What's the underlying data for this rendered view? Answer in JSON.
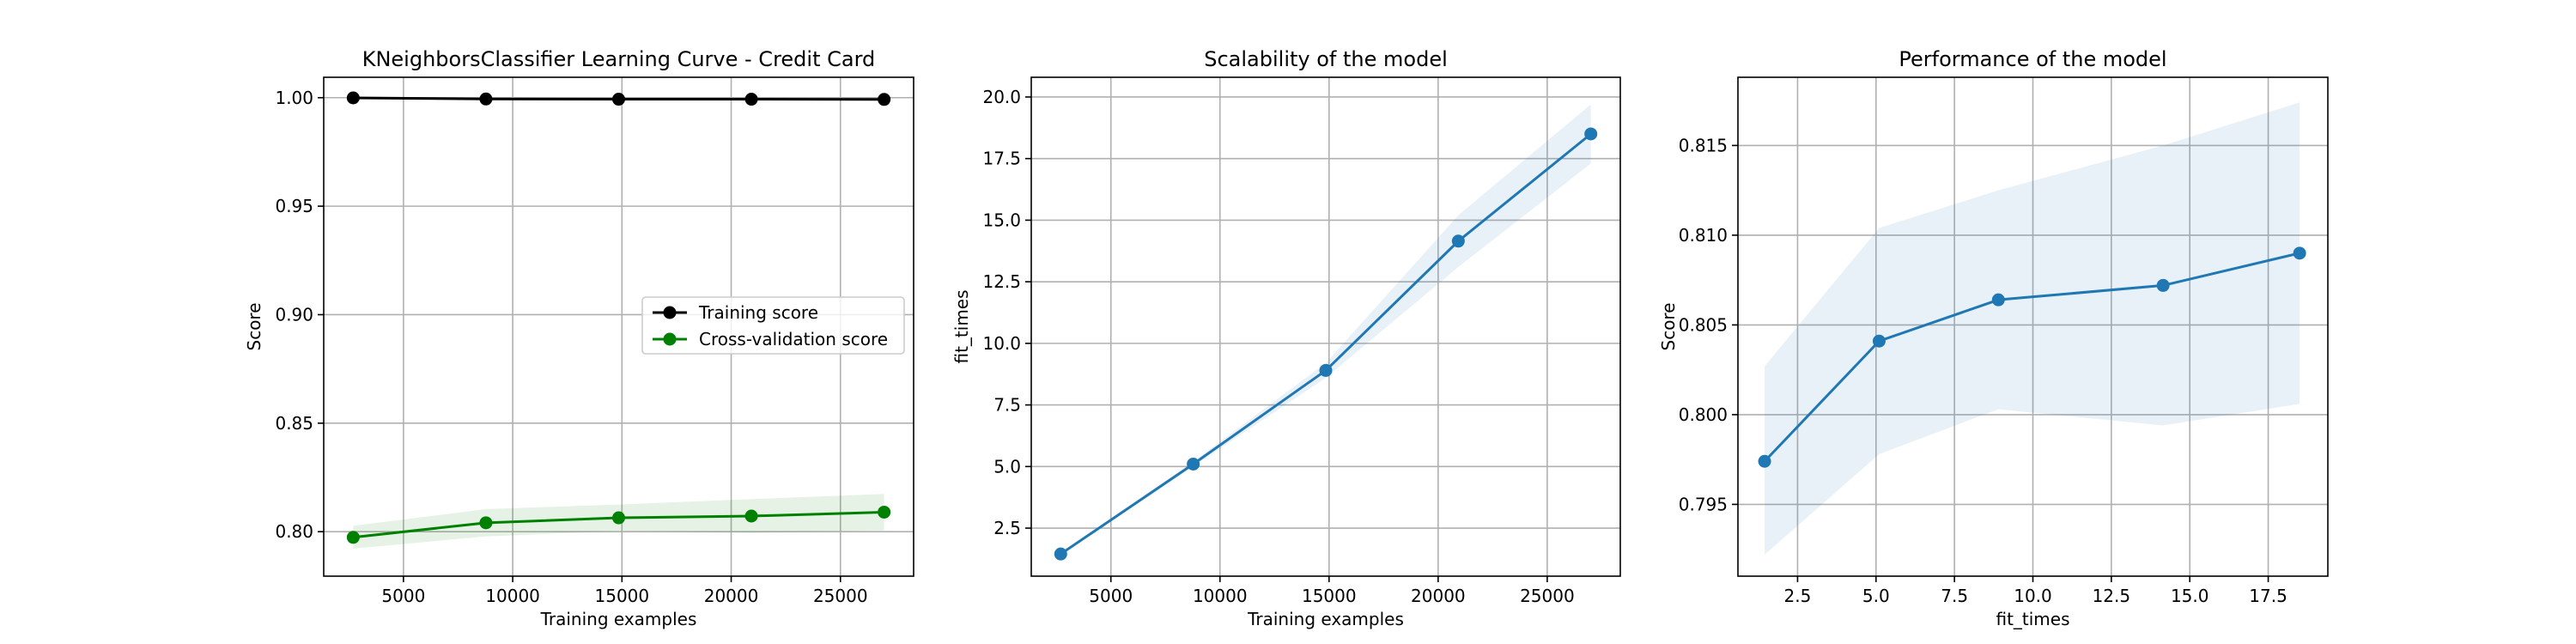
{
  "chart_data": [
    {
      "type": "line",
      "title": "KNeighborsClassifier Learning Curve - Credit Card",
      "xlabel": "Training examples",
      "ylabel": "Score",
      "xlim": [
        1350,
        28350
      ],
      "ylim": [
        0.7795,
        1.0094
      ],
      "xticks": [
        5000,
        10000,
        15000,
        20000,
        25000
      ],
      "xticklabels": [
        "5000",
        "10000",
        "15000",
        "20000",
        "25000"
      ],
      "yticks": [
        0.8,
        0.85,
        0.9,
        0.95,
        1.0
      ],
      "yticklabels": [
        "0.80",
        "0.85",
        "0.90",
        "0.95",
        "1.00"
      ],
      "grid": true,
      "legend": "center-right",
      "x": [
        2700,
        8775,
        14850,
        20925,
        27000
      ],
      "series": [
        {
          "name": "Training score",
          "color": "#000000",
          "values": [
            0.9999,
            0.9994,
            0.9993,
            0.9993,
            0.9992
          ],
          "band_lower": [
            0.9995,
            0.9992,
            0.9991,
            0.9991,
            0.999
          ],
          "band_upper": [
            1.0003,
            0.9996,
            0.9995,
            0.9995,
            0.9994
          ]
        },
        {
          "name": "Cross-validation score",
          "color": "#008000",
          "values": [
            0.7974,
            0.8041,
            0.8064,
            0.8072,
            0.809
          ],
          "band_lower": [
            0.7922,
            0.7978,
            0.8003,
            0.7994,
            0.8006
          ],
          "band_upper": [
            0.8027,
            0.8104,
            0.8125,
            0.815,
            0.8174
          ]
        }
      ]
    },
    {
      "type": "line",
      "title": "Scalability of the model",
      "xlabel": "Training examples",
      "ylabel": "fit_times",
      "xlim": [
        1350,
        28350
      ],
      "ylim": [
        0.55,
        20.8
      ],
      "xticks": [
        5000,
        10000,
        15000,
        20000,
        25000
      ],
      "xticklabels": [
        "5000",
        "10000",
        "15000",
        "20000",
        "25000"
      ],
      "yticks": [
        2.5,
        5.0,
        7.5,
        10.0,
        12.5,
        15.0,
        17.5,
        20.0
      ],
      "yticklabels": [
        "2.5",
        "5.0",
        "7.5",
        "10.0",
        "12.5",
        "15.0",
        "17.5",
        "20.0"
      ],
      "grid": true,
      "x": [
        2700,
        8775,
        14850,
        20925,
        27000
      ],
      "series": [
        {
          "color": "#1f77b4",
          "values": [
            1.45,
            5.1,
            8.9,
            14.15,
            18.5
          ],
          "band_lower": [
            1.4,
            5.0,
            8.6,
            13.1,
            17.3
          ],
          "band_upper": [
            1.5,
            5.2,
            9.2,
            15.2,
            19.7
          ]
        }
      ]
    },
    {
      "type": "line",
      "title": "Performance of the model",
      "xlabel": "fit_times",
      "ylabel": "Score",
      "xlim": [
        0.6,
        19.4
      ],
      "ylim": [
        0.791,
        0.8188
      ],
      "xticks": [
        2.5,
        5.0,
        7.5,
        10.0,
        12.5,
        15.0,
        17.5
      ],
      "xticklabels": [
        "2.5",
        "5.0",
        "7.5",
        "10.0",
        "12.5",
        "15.0",
        "17.5"
      ],
      "yticks": [
        0.795,
        0.8,
        0.805,
        0.81,
        0.815
      ],
      "yticklabels": [
        "0.795",
        "0.800",
        "0.805",
        "0.810",
        "0.815"
      ],
      "grid": true,
      "x": [
        1.45,
        5.1,
        8.9,
        14.15,
        18.5
      ],
      "series": [
        {
          "color": "#1f77b4",
          "values": [
            0.7974,
            0.8041,
            0.8064,
            0.8072,
            0.809
          ],
          "band_lower": [
            0.7922,
            0.7978,
            0.8003,
            0.7994,
            0.8006
          ],
          "band_upper": [
            0.8027,
            0.8104,
            0.8125,
            0.815,
            0.8174
          ]
        }
      ]
    }
  ]
}
